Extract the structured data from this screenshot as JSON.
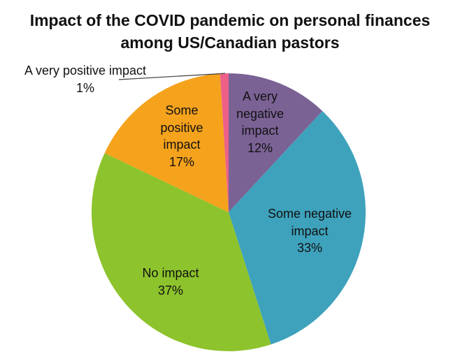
{
  "header": {
    "title_line1": "Impact of the COVID pandemic on personal finances",
    "title_line2": "among US/Canadian pastors"
  },
  "chart_data": {
    "type": "pie",
    "title": "Impact of the COVID pandemic on personal finances among US/Canadian pastors",
    "direction": "clockwise",
    "start_angle_deg": 0,
    "legend": "none",
    "slices": [
      {
        "label": "A very negative impact",
        "value": 12,
        "percent_label": "12%",
        "color": "#7B6295"
      },
      {
        "label": "Some negative impact",
        "value": 33,
        "percent_label": "33%",
        "color": "#3EA2BC"
      },
      {
        "label": "No impact",
        "value": 37,
        "percent_label": "37%",
        "color": "#8DC32C"
      },
      {
        "label": "Some positive impact",
        "value": 17,
        "percent_label": "17%",
        "color": "#F5A21D"
      },
      {
        "label": "A very positive impact",
        "value": 1,
        "percent_label": "1%",
        "color": "#ED6188"
      }
    ]
  },
  "slice_labels": {
    "very_negative": {
      "lines": [
        "A very",
        "negative",
        "impact",
        "12%"
      ]
    },
    "some_negative": {
      "lines": [
        "Some negative",
        "impact",
        "33%"
      ]
    },
    "no_impact": {
      "lines": [
        "No impact",
        "37%"
      ]
    },
    "some_positive": {
      "lines": [
        "Some",
        "positive",
        "impact",
        "17%"
      ]
    },
    "very_positive": {
      "lines": [
        "A very positive impact",
        "1%"
      ]
    }
  }
}
